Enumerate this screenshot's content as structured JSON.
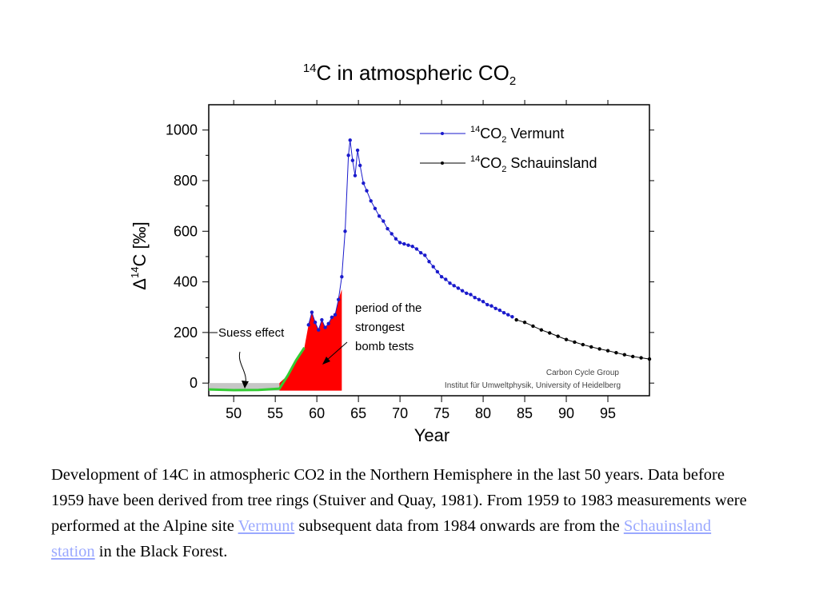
{
  "chart_data": {
    "type": "line",
    "title": "C in atmospheric CO",
    "title_sup": "14",
    "title_sub": "2",
    "xlabel": "Year",
    "ylabel": "C [‰]",
    "ylabel_prefix": "Δ",
    "ylabel_sup": "14",
    "xlim": [
      47,
      100
    ],
    "ylim": [
      -50,
      1100
    ],
    "xticks": [
      50,
      55,
      60,
      65,
      70,
      75,
      80,
      85,
      90,
      95
    ],
    "yticks": [
      0,
      200,
      400,
      600,
      800,
      1000
    ],
    "legend_position": "top-right",
    "series": [
      {
        "name": "CO",
        "name_sup": "14",
        "name_sub": "2",
        "name_suffix": " Vermunt",
        "color": "#1a1acc",
        "x": [
          59.0,
          59.4,
          59.8,
          60.2,
          60.6,
          61.0,
          61.4,
          61.8,
          62.2,
          62.6,
          63.0,
          63.4,
          63.8,
          64.0,
          64.3,
          64.6,
          64.9,
          65.2,
          65.6,
          66.0,
          66.5,
          67.0,
          67.5,
          68.0,
          68.5,
          69.0,
          69.5,
          70.0,
          70.5,
          71.0,
          71.5,
          72.0,
          72.5,
          73.0,
          73.5,
          74.0,
          74.5,
          75.0,
          75.5,
          76.0,
          76.5,
          77.0,
          77.5,
          78.0,
          78.5,
          79.0,
          79.5,
          80.0,
          80.5,
          81.0,
          81.5,
          82.0,
          82.5,
          83.0,
          83.5
        ],
        "y": [
          230,
          280,
          240,
          210,
          250,
          220,
          235,
          260,
          270,
          330,
          420,
          600,
          900,
          960,
          880,
          820,
          920,
          860,
          790,
          760,
          720,
          690,
          660,
          640,
          610,
          590,
          570,
          555,
          550,
          545,
          540,
          530,
          515,
          505,
          480,
          460,
          440,
          420,
          410,
          395,
          385,
          375,
          365,
          355,
          350,
          338,
          330,
          322,
          310,
          305,
          295,
          288,
          278,
          270,
          262
        ]
      },
      {
        "name": "CO",
        "name_sup": "14",
        "name_sub": "2",
        "name_suffix": " Schauinsland",
        "color": "#000000",
        "x": [
          84,
          85,
          86,
          87,
          88,
          89,
          90,
          91,
          92,
          93,
          94,
          95,
          96,
          97,
          98,
          99,
          100
        ],
        "y": [
          250,
          240,
          225,
          210,
          198,
          185,
          172,
          162,
          152,
          143,
          135,
          128,
          120,
          112,
          105,
          100,
          95
        ]
      }
    ],
    "tree_ring_record": {
      "x": [
        47,
        50,
        53,
        55.5,
        56.5,
        57.5,
        58.5
      ],
      "y": [
        -25,
        -28,
        -27,
        -22,
        30,
        90,
        140
      ],
      "color": "#33cc33"
    },
    "suess_effect_band": {
      "x": [
        47,
        50,
        53,
        55.5
      ],
      "y": [
        0,
        0,
        0,
        0
      ],
      "color": "#c0c0c0"
    },
    "bomb_test_region": {
      "x": [
        55.5,
        56.5,
        57.5,
        58.5,
        59.0,
        59.4,
        59.8,
        60.2,
        60.6,
        61.0,
        61.4,
        61.8,
        62.2,
        62.6,
        63.0
      ],
      "y": [
        0,
        30,
        90,
        140,
        230,
        280,
        240,
        210,
        250,
        220,
        235,
        260,
        270,
        330,
        370
      ],
      "color": "#ff0000"
    },
    "annotations": {
      "suess_effect": "Suess effect",
      "bomb_tests": [
        "period of the",
        "strongest",
        "bomb tests"
      ],
      "credit_line1": "Carbon Cycle Group",
      "credit_line2": "Institut für Umweltphysik, University of Heidelberg"
    }
  },
  "caption": {
    "text1": "Development of 14C in atmospheric CO2 in the Northern Hemisphere in the last 50 years. Data before 1959 have been derived from tree rings (Stuiver and Quay, 1981). From 1959 to 1983 measurements were performed at the Alpine site ",
    "link1": "Vermunt",
    "text2": " subsequent data from 1984 onwards are from the ",
    "link2": "Schauinsland station",
    "text3": " in the Black Forest."
  }
}
